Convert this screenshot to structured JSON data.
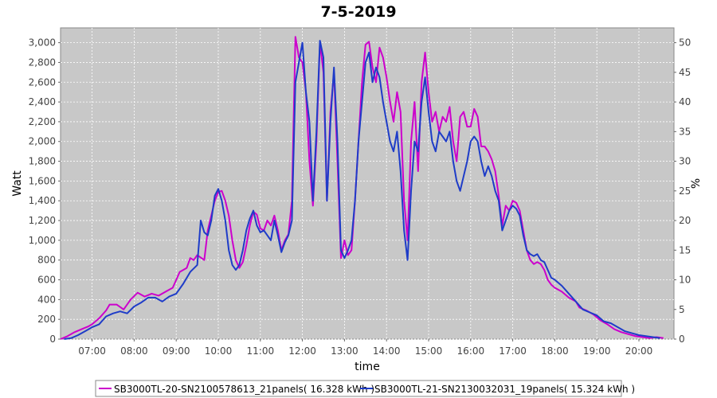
{
  "chart_data": {
    "type": "line",
    "title": "7-5-2019",
    "xlabel": "time",
    "ylabel": "Watt",
    "ylabel_right": "%",
    "x_ticks": [
      "07:00",
      "08:00",
      "09:00",
      "10:00",
      "11:00",
      "12:00",
      "13:00",
      "14:00",
      "15:00",
      "16:00",
      "17:00",
      "18:00",
      "19:00",
      "20:00"
    ],
    "y_ticks": [
      "0",
      "200",
      "400",
      "600",
      "800",
      "1,000",
      "1,200",
      "1,400",
      "1,600",
      "1,800",
      "2,000",
      "2,200",
      "2,400",
      "2,600",
      "2,800",
      "3,000"
    ],
    "y_right_ticks": [
      "0",
      "5",
      "10",
      "15",
      "20",
      "25",
      "30",
      "35",
      "40",
      "45",
      "50"
    ],
    "xlim": [
      "06:15",
      "20:50"
    ],
    "ylim": [
      0,
      3150
    ],
    "ylim_right": [
      0,
      52.5
    ],
    "grid": true,
    "legend_position": "bottom",
    "series": [
      {
        "name": "SB3000TL-20-SN2100578613_21panels( 16.328 kWh )",
        "color": "#cc00cc",
        "points": [
          [
            "06:15",
            0
          ],
          [
            "06:25",
            30
          ],
          [
            "06:35",
            70
          ],
          [
            "06:45",
            100
          ],
          [
            "06:55",
            130
          ],
          [
            "07:00",
            150
          ],
          [
            "07:10",
            210
          ],
          [
            "07:20",
            290
          ],
          [
            "07:25",
            350
          ],
          [
            "07:35",
            350
          ],
          [
            "07:45",
            300
          ],
          [
            "07:55",
            400
          ],
          [
            "08:05",
            470
          ],
          [
            "08:15",
            430
          ],
          [
            "08:25",
            460
          ],
          [
            "08:35",
            440
          ],
          [
            "08:45",
            480
          ],
          [
            "08:55",
            520
          ],
          [
            "09:05",
            680
          ],
          [
            "09:15",
            720
          ],
          [
            "09:20",
            820
          ],
          [
            "09:25",
            800
          ],
          [
            "09:30",
            850
          ],
          [
            "09:40",
            800
          ],
          [
            "09:45",
            1100
          ],
          [
            "09:50",
            1250
          ],
          [
            "09:55",
            1400
          ],
          [
            "10:00",
            1490
          ],
          [
            "10:05",
            1500
          ],
          [
            "10:10",
            1400
          ],
          [
            "10:15",
            1250
          ],
          [
            "10:20",
            1000
          ],
          [
            "10:25",
            800
          ],
          [
            "10:30",
            720
          ],
          [
            "10:35",
            780
          ],
          [
            "10:40",
            950
          ],
          [
            "10:45",
            1150
          ],
          [
            "10:50",
            1290
          ],
          [
            "10:55",
            1260
          ],
          [
            "11:00",
            1120
          ],
          [
            "11:05",
            1100
          ],
          [
            "11:10",
            1200
          ],
          [
            "11:15",
            1150
          ],
          [
            "11:20",
            1250
          ],
          [
            "11:25",
            1100
          ],
          [
            "11:30",
            900
          ],
          [
            "11:35",
            1000
          ],
          [
            "11:40",
            1060
          ],
          [
            "11:45",
            1400
          ],
          [
            "11:50",
            3060
          ],
          [
            "11:55",
            2850
          ],
          [
            "12:00",
            2800
          ],
          [
            "12:05",
            2500
          ],
          [
            "12:10",
            1800
          ],
          [
            "12:15",
            1350
          ],
          [
            "12:20",
            2000
          ],
          [
            "12:25",
            3000
          ],
          [
            "12:30",
            2700
          ],
          [
            "12:35",
            1400
          ],
          [
            "12:40",
            2300
          ],
          [
            "12:45",
            2700
          ],
          [
            "12:50",
            1800
          ],
          [
            "12:55",
            820
          ],
          [
            "13:00",
            1000
          ],
          [
            "13:05",
            850
          ],
          [
            "13:10",
            900
          ],
          [
            "13:15",
            1400
          ],
          [
            "13:20",
            2000
          ],
          [
            "13:25",
            2600
          ],
          [
            "13:30",
            2980
          ],
          [
            "13:35",
            3010
          ],
          [
            "13:40",
            2750
          ],
          [
            "13:45",
            2600
          ],
          [
            "13:50",
            2950
          ],
          [
            "13:55",
            2850
          ],
          [
            "14:00",
            2650
          ],
          [
            "14:05",
            2400
          ],
          [
            "14:10",
            2200
          ],
          [
            "14:15",
            2500
          ],
          [
            "14:20",
            2300
          ],
          [
            "14:25",
            1400
          ],
          [
            "14:30",
            1000
          ],
          [
            "14:35",
            2000
          ],
          [
            "14:40",
            2400
          ],
          [
            "14:45",
            1700
          ],
          [
            "14:50",
            2600
          ],
          [
            "14:55",
            2900
          ],
          [
            "15:00",
            2500
          ],
          [
            "15:05",
            2200
          ],
          [
            "15:10",
            2300
          ],
          [
            "15:15",
            2100
          ],
          [
            "15:20",
            2250
          ],
          [
            "15:25",
            2200
          ],
          [
            "15:30",
            2350
          ],
          [
            "15:35",
            2000
          ],
          [
            "15:40",
            1800
          ],
          [
            "15:45",
            2250
          ],
          [
            "15:50",
            2300
          ],
          [
            "15:55",
            2150
          ],
          [
            "16:00",
            2150
          ],
          [
            "16:05",
            2330
          ],
          [
            "16:10",
            2250
          ],
          [
            "16:15",
            1950
          ],
          [
            "16:20",
            1950
          ],
          [
            "16:25",
            1900
          ],
          [
            "16:30",
            1820
          ],
          [
            "16:35",
            1700
          ],
          [
            "16:40",
            1450
          ],
          [
            "16:45",
            1150
          ],
          [
            "16:50",
            1350
          ],
          [
            "16:55",
            1300
          ],
          [
            "17:00",
            1400
          ],
          [
            "17:05",
            1380
          ],
          [
            "17:10",
            1300
          ],
          [
            "17:15",
            1100
          ],
          [
            "17:20",
            900
          ],
          [
            "17:25",
            800
          ],
          [
            "17:30",
            760
          ],
          [
            "17:35",
            780
          ],
          [
            "17:40",
            760
          ],
          [
            "17:45",
            700
          ],
          [
            "17:50",
            600
          ],
          [
            "17:55",
            550
          ],
          [
            "18:00",
            520
          ],
          [
            "18:10",
            480
          ],
          [
            "18:20",
            420
          ],
          [
            "18:30",
            380
          ],
          [
            "18:35",
            320
          ],
          [
            "18:45",
            290
          ],
          [
            "18:55",
            250
          ],
          [
            "19:05",
            190
          ],
          [
            "19:15",
            150
          ],
          [
            "19:25",
            100
          ],
          [
            "19:35",
            70
          ],
          [
            "19:45",
            50
          ],
          [
            "19:55",
            30
          ],
          [
            "20:05",
            20
          ],
          [
            "20:15",
            10
          ],
          [
            "20:25",
            20
          ],
          [
            "20:35",
            10
          ]
        ]
      },
      {
        "name": "SB3000TL-21-SN2130032031_19panels( 15.324 kWh )",
        "color": "#1e3cc8",
        "points": [
          [
            "06:20",
            0
          ],
          [
            "06:30",
            10
          ],
          [
            "06:40",
            40
          ],
          [
            "06:50",
            80
          ],
          [
            "07:00",
            120
          ],
          [
            "07:10",
            150
          ],
          [
            "07:20",
            230
          ],
          [
            "07:30",
            260
          ],
          [
            "07:40",
            280
          ],
          [
            "07:50",
            260
          ],
          [
            "08:00",
            330
          ],
          [
            "08:10",
            370
          ],
          [
            "08:20",
            420
          ],
          [
            "08:30",
            420
          ],
          [
            "08:40",
            380
          ],
          [
            "08:50",
            430
          ],
          [
            "09:00",
            460
          ],
          [
            "09:10",
            560
          ],
          [
            "09:20",
            680
          ],
          [
            "09:30",
            750
          ],
          [
            "09:35",
            1200
          ],
          [
            "09:40",
            1080
          ],
          [
            "09:45",
            1050
          ],
          [
            "09:50",
            1200
          ],
          [
            "09:55",
            1450
          ],
          [
            "10:00",
            1520
          ],
          [
            "10:05",
            1400
          ],
          [
            "10:10",
            1200
          ],
          [
            "10:15",
            900
          ],
          [
            "10:20",
            750
          ],
          [
            "10:25",
            700
          ],
          [
            "10:30",
            750
          ],
          [
            "10:35",
            900
          ],
          [
            "10:40",
            1100
          ],
          [
            "10:45",
            1220
          ],
          [
            "10:50",
            1300
          ],
          [
            "10:55",
            1150
          ],
          [
            "11:00",
            1080
          ],
          [
            "11:05",
            1100
          ],
          [
            "11:10",
            1050
          ],
          [
            "11:15",
            1000
          ],
          [
            "11:20",
            1200
          ],
          [
            "11:25",
            1050
          ],
          [
            "11:30",
            880
          ],
          [
            "11:35",
            980
          ],
          [
            "11:40",
            1050
          ],
          [
            "11:45",
            1200
          ],
          [
            "11:50",
            2600
          ],
          [
            "11:55",
            2800
          ],
          [
            "12:00",
            3000
          ],
          [
            "12:05",
            2500
          ],
          [
            "12:10",
            2200
          ],
          [
            "12:15",
            1400
          ],
          [
            "12:20",
            2100
          ],
          [
            "12:25",
            3020
          ],
          [
            "12:30",
            2850
          ],
          [
            "12:35",
            1400
          ],
          [
            "12:40",
            2200
          ],
          [
            "12:45",
            2750
          ],
          [
            "12:50",
            2000
          ],
          [
            "12:55",
            900
          ],
          [
            "13:00",
            820
          ],
          [
            "13:05",
            900
          ],
          [
            "13:10",
            1000
          ],
          [
            "13:15",
            1400
          ],
          [
            "13:20",
            2000
          ],
          [
            "13:25",
            2400
          ],
          [
            "13:30",
            2800
          ],
          [
            "13:35",
            2900
          ],
          [
            "13:40",
            2600
          ],
          [
            "13:45",
            2750
          ],
          [
            "13:50",
            2650
          ],
          [
            "13:55",
            2400
          ],
          [
            "14:00",
            2200
          ],
          [
            "14:05",
            2000
          ],
          [
            "14:10",
            1900
          ],
          [
            "14:15",
            2100
          ],
          [
            "14:20",
            1700
          ],
          [
            "14:25",
            1100
          ],
          [
            "14:30",
            800
          ],
          [
            "14:35",
            1500
          ],
          [
            "14:40",
            2000
          ],
          [
            "14:45",
            1900
          ],
          [
            "14:50",
            2400
          ],
          [
            "14:55",
            2650
          ],
          [
            "15:00",
            2300
          ],
          [
            "15:05",
            2000
          ],
          [
            "15:10",
            1900
          ],
          [
            "15:15",
            2100
          ],
          [
            "15:20",
            2050
          ],
          [
            "15:25",
            2000
          ],
          [
            "15:30",
            2100
          ],
          [
            "15:35",
            1800
          ],
          [
            "15:40",
            1600
          ],
          [
            "15:45",
            1500
          ],
          [
            "15:50",
            1650
          ],
          [
            "15:55",
            1800
          ],
          [
            "16:00",
            2000
          ],
          [
            "16:05",
            2050
          ],
          [
            "16:10",
            2000
          ],
          [
            "16:15",
            1800
          ],
          [
            "16:20",
            1650
          ],
          [
            "16:25",
            1750
          ],
          [
            "16:30",
            1650
          ],
          [
            "16:35",
            1500
          ],
          [
            "16:40",
            1400
          ],
          [
            "16:45",
            1100
          ],
          [
            "16:50",
            1200
          ],
          [
            "16:55",
            1300
          ],
          [
            "17:00",
            1350
          ],
          [
            "17:05",
            1320
          ],
          [
            "17:10",
            1250
          ],
          [
            "17:15",
            1050
          ],
          [
            "17:20",
            900
          ],
          [
            "17:25",
            860
          ],
          [
            "17:30",
            840
          ],
          [
            "17:35",
            860
          ],
          [
            "17:40",
            800
          ],
          [
            "17:45",
            780
          ],
          [
            "17:50",
            700
          ],
          [
            "17:55",
            620
          ],
          [
            "18:00",
            600
          ],
          [
            "18:10",
            540
          ],
          [
            "18:20",
            460
          ],
          [
            "18:30",
            380
          ],
          [
            "18:40",
            300
          ],
          [
            "18:50",
            270
          ],
          [
            "19:00",
            240
          ],
          [
            "19:10",
            180
          ],
          [
            "19:20",
            160
          ],
          [
            "19:30",
            120
          ],
          [
            "19:40",
            80
          ],
          [
            "19:50",
            60
          ],
          [
            "20:00",
            40
          ],
          [
            "20:10",
            30
          ],
          [
            "20:20",
            20
          ],
          [
            "20:30",
            10
          ]
        ]
      }
    ]
  }
}
